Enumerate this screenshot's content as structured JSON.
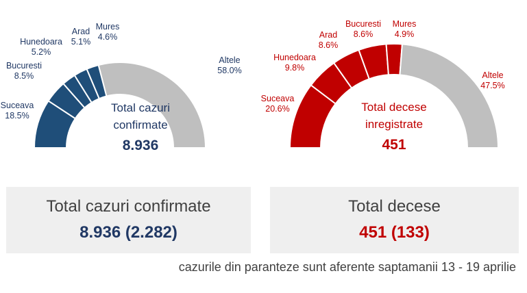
{
  "chart_data": [
    {
      "type": "pie",
      "subtype": "half-donut",
      "center_title_lines": [
        "Total cazuri",
        "confirmate"
      ],
      "center_value": "8.936",
      "colors": {
        "counties": "#1f4e79",
        "other": "#bfbfbf",
        "text": "#203864"
      },
      "slices": [
        {
          "label": "Suceava",
          "value": 18.5,
          "value_text": "18.5%"
        },
        {
          "label": "Bucuresti",
          "value": 8.5,
          "value_text": "8.5%"
        },
        {
          "label": "Hunedoara",
          "value": 5.2,
          "value_text": "5.2%"
        },
        {
          "label": "Arad",
          "value": 5.1,
          "value_text": "5.1%"
        },
        {
          "label": "Mures",
          "value": 4.6,
          "value_text": "4.6%"
        },
        {
          "label": "Altele",
          "value": 58.0,
          "value_text": "58.0%"
        }
      ]
    },
    {
      "type": "pie",
      "subtype": "half-donut",
      "center_title_lines": [
        "Total decese",
        "inregistrate"
      ],
      "center_value": "451",
      "colors": {
        "counties": "#c00000",
        "other": "#bfbfbf",
        "text": "#c00000"
      },
      "slices": [
        {
          "label": "Suceava",
          "value": 20.6,
          "value_text": "20.6%"
        },
        {
          "label": "Hunedoara",
          "value": 9.8,
          "value_text": "9.8%"
        },
        {
          "label": "Arad",
          "value": 8.6,
          "value_text": "8.6%"
        },
        {
          "label": "Bucuresti",
          "value": 8.6,
          "value_text": "8.6%"
        },
        {
          "label": "Mures",
          "value": 4.9,
          "value_text": "4.9%"
        },
        {
          "label": "Altele",
          "value": 47.5,
          "value_text": "47.5%"
        }
      ]
    }
  ],
  "summary": {
    "cases": {
      "title": "Total cazuri confirmate",
      "value": "8.936 (2.282)"
    },
    "deaths": {
      "title": "Total decese",
      "value": "451 (133)"
    }
  },
  "footnote": "cazurile din paranteze sunt aferente saptamanii 13 - 19 aprilie"
}
